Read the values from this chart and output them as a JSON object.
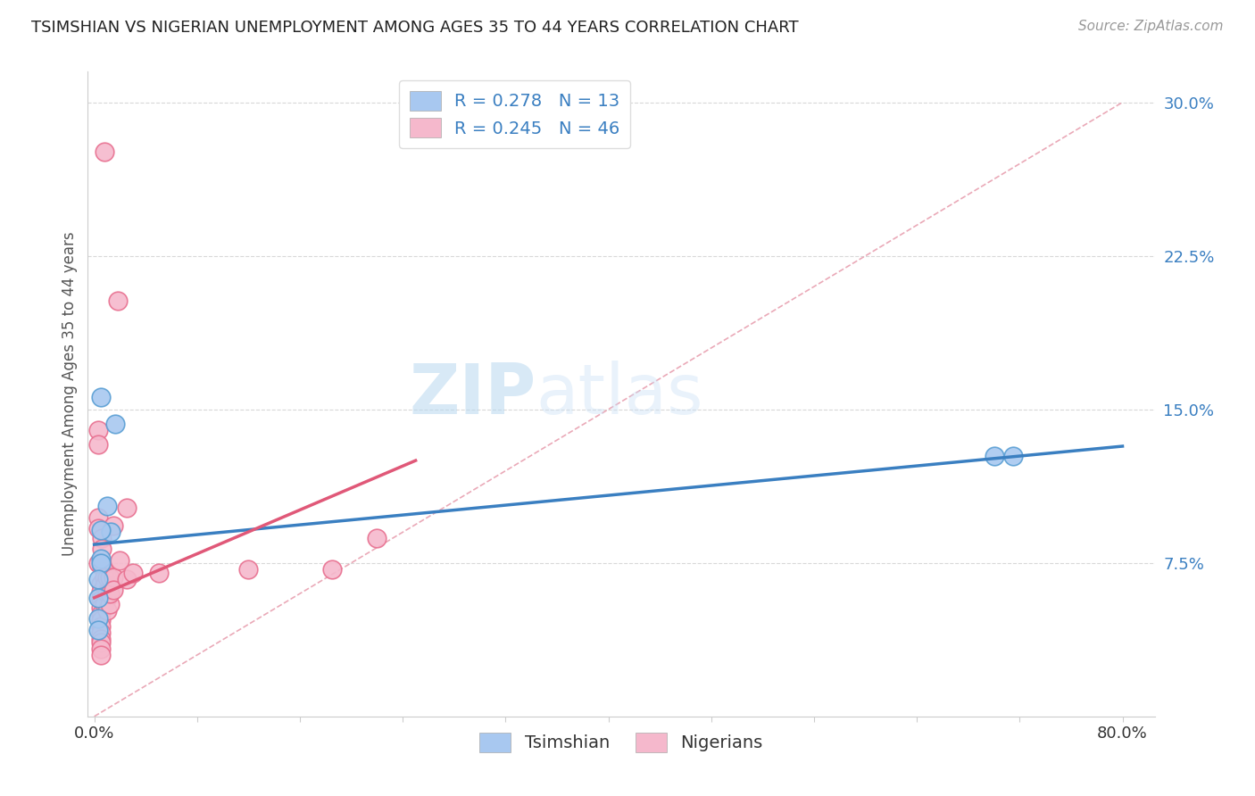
{
  "title": "TSIMSHIAN VS NIGERIAN UNEMPLOYMENT AMONG AGES 35 TO 44 YEARS CORRELATION CHART",
  "source": "Source: ZipAtlas.com",
  "ylabel": "Unemployment Among Ages 35 to 44 years",
  "xlabel": "",
  "xlim": [
    -0.005,
    0.825
  ],
  "ylim": [
    0.0,
    0.315
  ],
  "xticks": [
    0.0,
    0.08,
    0.16,
    0.24,
    0.32,
    0.4,
    0.48,
    0.56,
    0.64,
    0.72,
    0.8
  ],
  "yticks": [
    0.075,
    0.15,
    0.225,
    0.3
  ],
  "ytick_labels": [
    "7.5%",
    "15.0%",
    "22.5%",
    "30.0%"
  ],
  "xtick_labels": [
    "0.0%",
    "",
    "",
    "",
    "",
    "",
    "",
    "",
    "",
    "",
    "80.0%"
  ],
  "tsimshian_color": "#a8c8f0",
  "nigerian_color": "#f5b8cc",
  "tsimshian_edge_color": "#5a9fd4",
  "nigerian_edge_color": "#e87090",
  "tsimshian_R": 0.278,
  "tsimshian_N": 13,
  "nigerian_R": 0.245,
  "nigerian_N": 46,
  "watermark_zip": "ZIP",
  "watermark_atlas": "atlas",
  "background_color": "#ffffff",
  "tsimshian_line_color": "#3a7fc1",
  "nigerian_line_color": "#e05878",
  "ref_line_color": "#e8a0b0",
  "tsimshian_points": [
    [
      0.005,
      0.156
    ],
    [
      0.016,
      0.143
    ],
    [
      0.01,
      0.103
    ],
    [
      0.013,
      0.09
    ],
    [
      0.005,
      0.091
    ],
    [
      0.005,
      0.077
    ],
    [
      0.005,
      0.075
    ],
    [
      0.003,
      0.067
    ],
    [
      0.003,
      0.058
    ],
    [
      0.003,
      0.048
    ],
    [
      0.003,
      0.042
    ],
    [
      0.7,
      0.127
    ],
    [
      0.715,
      0.127
    ]
  ],
  "nigerian_points": [
    [
      0.008,
      0.276
    ],
    [
      0.018,
      0.203
    ],
    [
      0.003,
      0.14
    ],
    [
      0.003,
      0.133
    ],
    [
      0.003,
      0.097
    ],
    [
      0.003,
      0.092
    ],
    [
      0.006,
      0.087
    ],
    [
      0.006,
      0.082
    ],
    [
      0.003,
      0.075
    ],
    [
      0.006,
      0.073
    ],
    [
      0.008,
      0.071
    ],
    [
      0.008,
      0.068
    ],
    [
      0.005,
      0.065
    ],
    [
      0.005,
      0.061
    ],
    [
      0.005,
      0.057
    ],
    [
      0.005,
      0.053
    ],
    [
      0.005,
      0.05
    ],
    [
      0.005,
      0.047
    ],
    [
      0.005,
      0.044
    ],
    [
      0.005,
      0.041
    ],
    [
      0.005,
      0.038
    ],
    [
      0.005,
      0.036
    ],
    [
      0.005,
      0.033
    ],
    [
      0.005,
      0.03
    ],
    [
      0.008,
      0.068
    ],
    [
      0.008,
      0.064
    ],
    [
      0.01,
      0.061
    ],
    [
      0.01,
      0.058
    ],
    [
      0.008,
      0.055
    ],
    [
      0.01,
      0.052
    ],
    [
      0.01,
      0.068
    ],
    [
      0.01,
      0.06
    ],
    [
      0.012,
      0.055
    ],
    [
      0.012,
      0.068
    ],
    [
      0.012,
      0.06
    ],
    [
      0.015,
      0.068
    ],
    [
      0.015,
      0.062
    ],
    [
      0.015,
      0.093
    ],
    [
      0.02,
      0.076
    ],
    [
      0.025,
      0.067
    ],
    [
      0.025,
      0.102
    ],
    [
      0.03,
      0.07
    ],
    [
      0.05,
      0.07
    ],
    [
      0.12,
      0.072
    ],
    [
      0.185,
      0.072
    ],
    [
      0.22,
      0.087
    ]
  ],
  "tsimshian_line_x": [
    0.0,
    0.8
  ],
  "tsimshian_line_y": [
    0.084,
    0.132
  ],
  "nigerian_line_x": [
    0.0,
    0.25
  ],
  "nigerian_line_y": [
    0.058,
    0.125
  ]
}
